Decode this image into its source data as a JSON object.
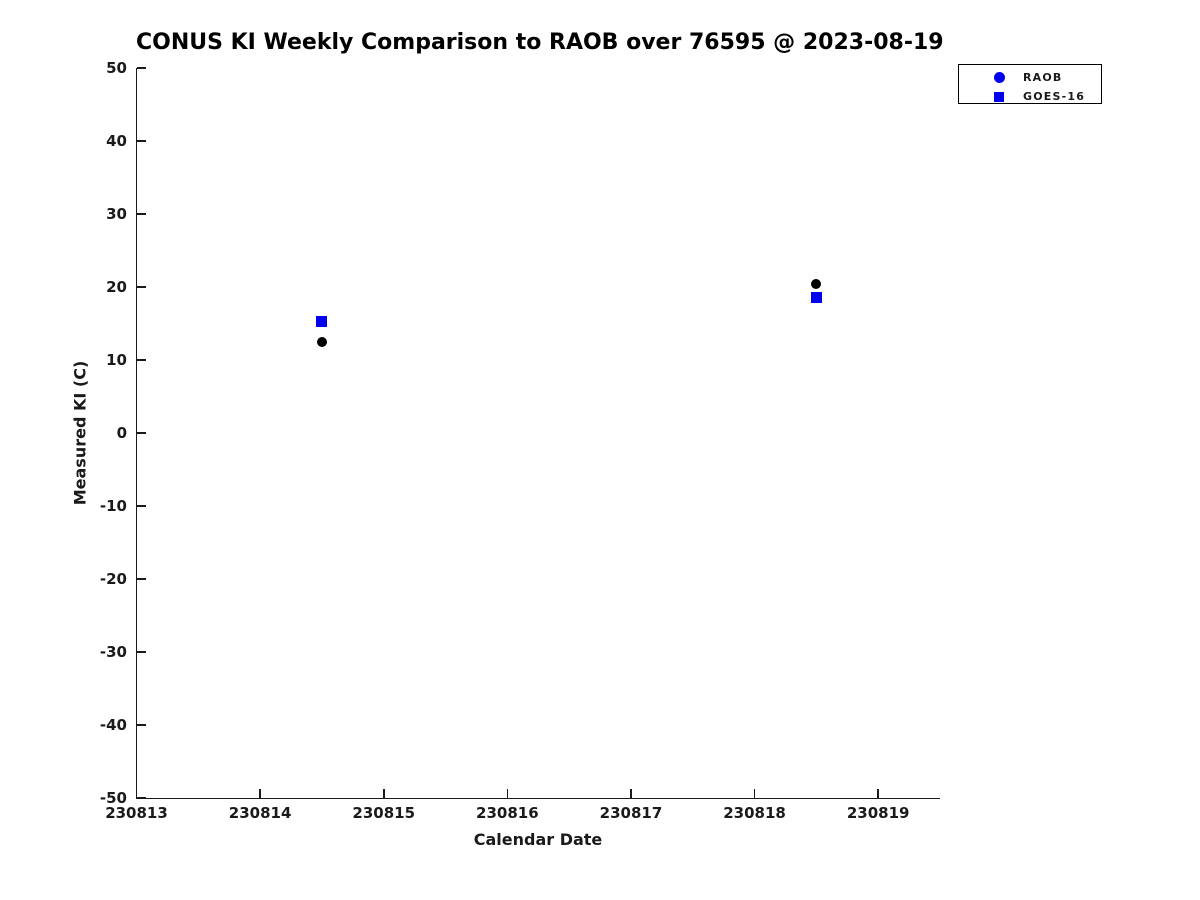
{
  "figure": {
    "title": "CONUS KI Weekly Comparison to RAOB over 76595 @ 2023-08-19"
  },
  "chart_data": {
    "type": "scatter",
    "title": "CONUS KI Weekly Comparison to RAOB over 76595 @ 2023-08-19",
    "xlabel": "Calendar Date",
    "ylabel": "Measured KI (C)",
    "xlim": [
      230813,
      230819.5
    ],
    "ylim": [
      -50,
      50
    ],
    "xticks": [
      230813,
      230814,
      230815,
      230816,
      230817,
      230818,
      230819
    ],
    "yticks": [
      50,
      40,
      30,
      20,
      10,
      0,
      -10,
      -20,
      -30,
      -40,
      -50
    ],
    "grid": false,
    "background": "#ffffff",
    "axis_color": "#1a1a1a",
    "legend": {
      "position": "top-right",
      "entries": [
        {
          "label": "RAOB",
          "marker": "circle",
          "color": "#0000ee"
        },
        {
          "label": "GOES-16",
          "marker": "square",
          "color": "#0000ee"
        }
      ]
    },
    "series": [
      {
        "name": "RAOB",
        "marker": "circle",
        "color": "#000000",
        "x": [
          230814.5,
          230818.5
        ],
        "y": [
          12.5,
          20.4
        ]
      },
      {
        "name": "GOES-16",
        "marker": "square",
        "color": "#0000ee",
        "x": [
          230814.5,
          230818.5
        ],
        "y": [
          15.3,
          18.5
        ]
      }
    ]
  }
}
